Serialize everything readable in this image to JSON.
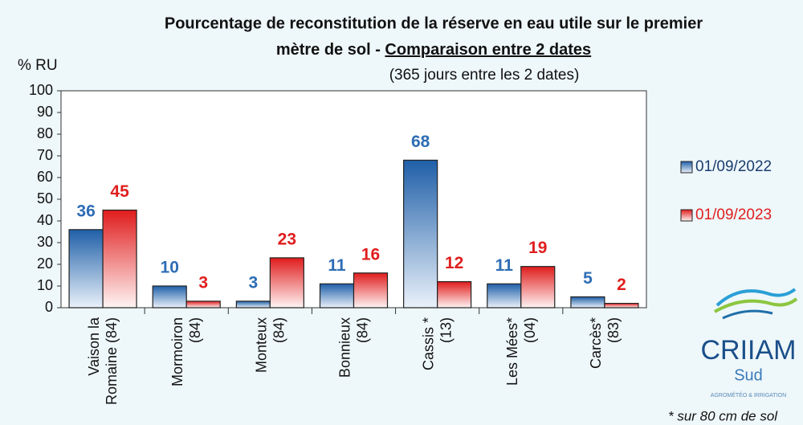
{
  "chart_data": {
    "type": "bar",
    "title": {
      "line1": "Pourcentage de reconstitution de la réserve en eau utile  sur le premier",
      "line2": "mètre de sol - ",
      "line2_underlined": "Comparaison entre 2 dates"
    },
    "subtitle": "(365 jours entre les 2 dates)",
    "y_label": "% RU",
    "footnote": "* sur 80 cm de sol",
    "logo": {
      "name": "CRIIAM",
      "sub": "Sud",
      "tagline": "AGROMÉTÉO & IRRIGATION"
    },
    "categories": [
      "Vaison la\nRomaine (84)",
      "Mormoiron\n(84)",
      "Monteux\n(84)",
      "Bonnieux\n(84)",
      "Cassis *\n(13)",
      "Les Mées*\n(04)",
      "Carcès*\n(83)"
    ],
    "series": [
      {
        "name": "01/09/2022",
        "color": "#1f5fa8",
        "label_color": "#2e6db4",
        "values": [
          36,
          10,
          3,
          11,
          68,
          11,
          5
        ]
      },
      {
        "name": "01/09/2023",
        "color": "#e01c1c",
        "label_color": "#e01e1e",
        "values": [
          45,
          3,
          23,
          16,
          12,
          19,
          2
        ]
      }
    ],
    "ylim": [
      0,
      100
    ],
    "yticks": [
      0,
      10,
      20,
      30,
      40,
      50,
      60,
      70,
      80,
      90,
      100
    ],
    "grid": false,
    "legend": "right"
  }
}
